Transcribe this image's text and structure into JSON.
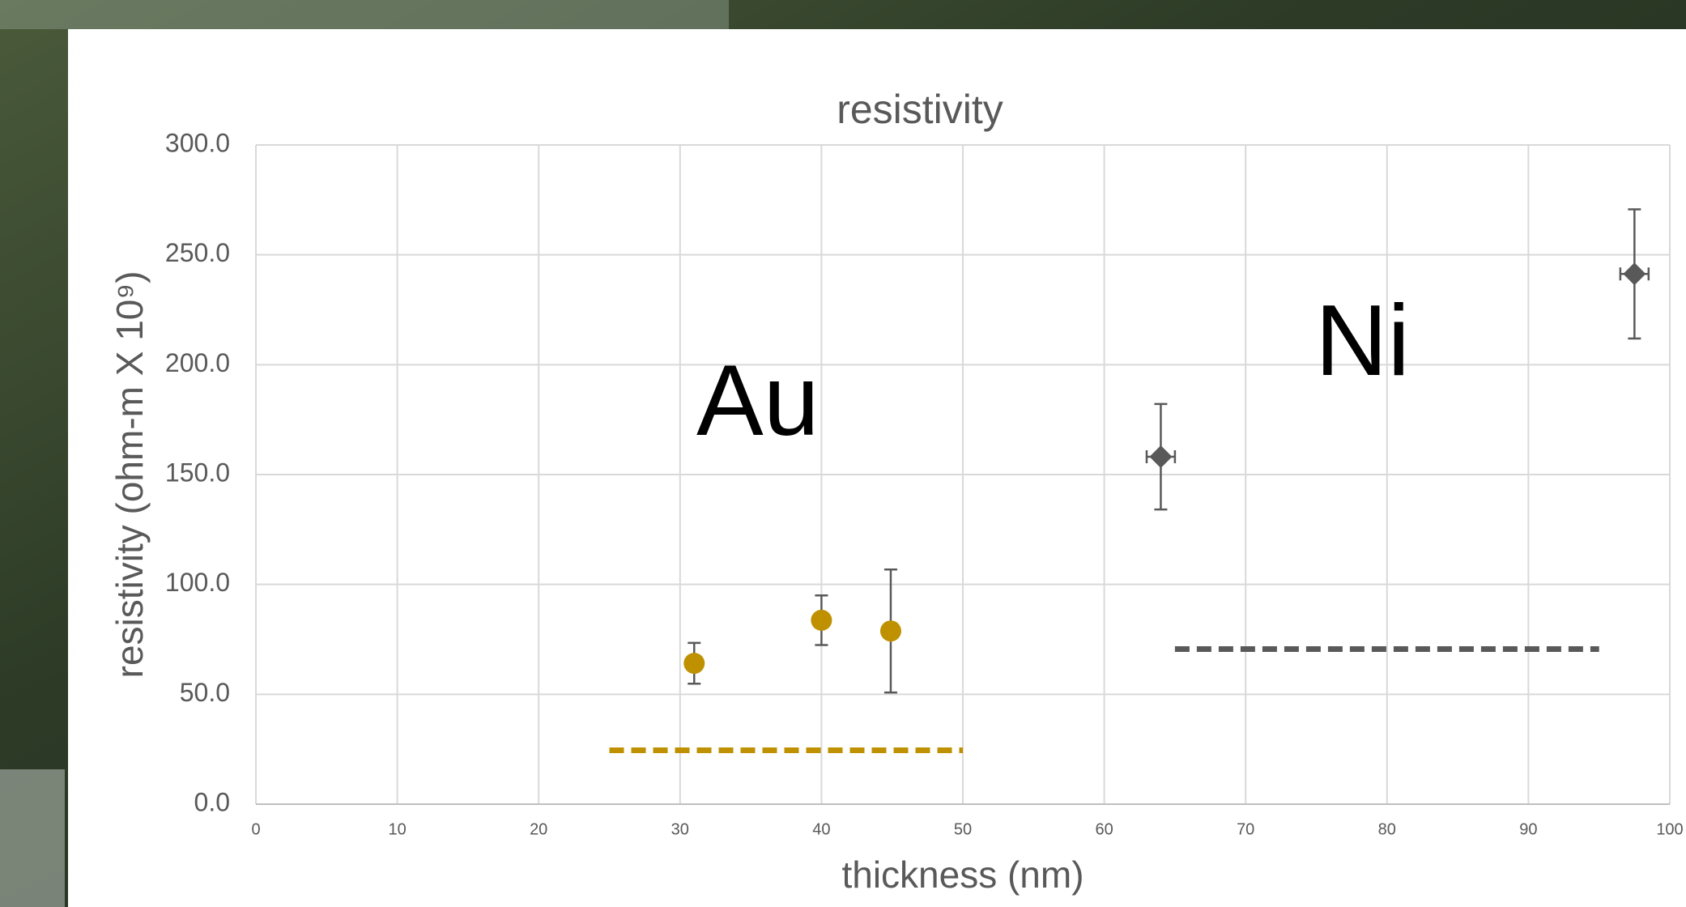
{
  "chart_data": {
    "type": "scatter",
    "title": "resistivity",
    "xlabel": "thickness (nm)",
    "ylabel": "resistivity (ohm-m X 10⁹)",
    "xlim": [
      0,
      100
    ],
    "xticks": [
      0,
      10,
      20,
      30,
      40,
      50,
      60,
      70,
      80,
      90,
      100
    ],
    "ylim": [
      0,
      300
    ],
    "yticks": [
      {
        "value": 0,
        "label": "0.0"
      },
      {
        "value": 50,
        "label": "50.0"
      },
      {
        "value": 100,
        "label": "100.0"
      },
      {
        "value": 150,
        "label": "150.0"
      },
      {
        "value": 200,
        "label": "200.0"
      },
      {
        "value": 250,
        "label": "250.0"
      },
      {
        "value": 300,
        "label": "300.0"
      }
    ],
    "grid": true,
    "series": [
      {
        "color": "#bf9000",
        "marker": "circle",
        "x": [
          31,
          40,
          44.9
        ],
        "values": [
          64.1,
          83.7,
          78.8
        ],
        "y_errors": [
          9.3,
          11.3,
          28
        ],
        "x_errors": [
          0,
          0,
          0
        ]
      },
      {
        "color": "#595959",
        "marker": "diamond",
        "x": [
          64,
          97.5
        ],
        "values": [
          158.1,
          241.3
        ],
        "y_errors": [
          24,
          29.4
        ],
        "x_errors": [
          1,
          1
        ]
      }
    ],
    "reference_lines": [
      {
        "x": [
          25,
          50
        ],
        "y": 24.5,
        "color": "#bf9000"
      },
      {
        "x": [
          65,
          95
        ],
        "y": 70.6,
        "color": "#595959"
      }
    ],
    "annotations": [
      "Au",
      "Ni"
    ]
  }
}
